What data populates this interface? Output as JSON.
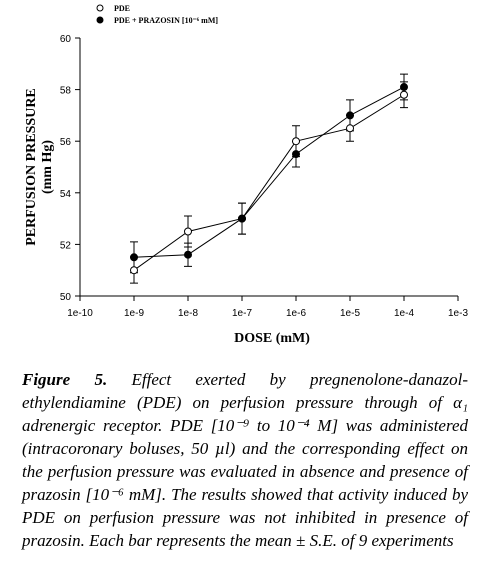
{
  "chart_data": {
    "type": "line",
    "x": [
      1e-09,
      1e-08,
      1e-07,
      1e-06,
      1e-05,
      0.0001
    ],
    "series": [
      {
        "name": "PDE",
        "color": "#000000",
        "marker": "open",
        "values": [
          51.0,
          52.5,
          53.0,
          56.0,
          56.5,
          57.8
        ],
        "errors": [
          0.5,
          0.6,
          0.6,
          0.6,
          0.5,
          0.5
        ]
      },
      {
        "name": "PDE + PRAZOSIN [10⁻⁶ mM]",
        "color": "#000000",
        "marker": "filled",
        "values": [
          51.5,
          51.6,
          53.0,
          55.5,
          57.0,
          58.1
        ],
        "errors": [
          0.6,
          0.45,
          0.6,
          0.5,
          0.6,
          0.5
        ]
      }
    ],
    "xlabel": "DOSE (mM)",
    "ylabel": [
      "PERFUSION PRESSURE",
      "(mm Hg)"
    ],
    "xscale": "log",
    "xlim": [
      1e-10,
      0.001
    ],
    "xticks": [
      {
        "value": 1e-10,
        "label": "1e-10"
      },
      {
        "value": 1e-09,
        "label": "1e-9"
      },
      {
        "value": 1e-08,
        "label": "1e-8"
      },
      {
        "value": 1e-07,
        "label": "1e-7"
      },
      {
        "value": 1e-06,
        "label": "1e-6"
      },
      {
        "value": 1e-05,
        "label": "1e-5"
      },
      {
        "value": 0.0001,
        "label": "1e-4"
      },
      {
        "value": 0.001,
        "label": "1e-3"
      }
    ],
    "ylim": [
      50,
      60
    ],
    "yticks": [
      50,
      52,
      54,
      56,
      58,
      60
    ],
    "legend": "top-left"
  },
  "caption": {
    "label": "Figure 5.",
    "text": "Effect exerted by pregnenolone-danazol-ethylendiamine (PDE) on perfusion pressure through of α₁ adrenergic receptor. PDE [10⁻⁹ to 10⁻⁴ M] was administered (intracoronary boluses, 50 µl) and the corresponding effect on the perfusion pressure was evaluated in absence and presence of prazosin [10⁻⁶ mM]. The results showed that activity induced by PDE on perfusion pressure was not inhibited in presence of prazosin. Each bar represents the mean ± S.E. of 9 experiments"
  }
}
